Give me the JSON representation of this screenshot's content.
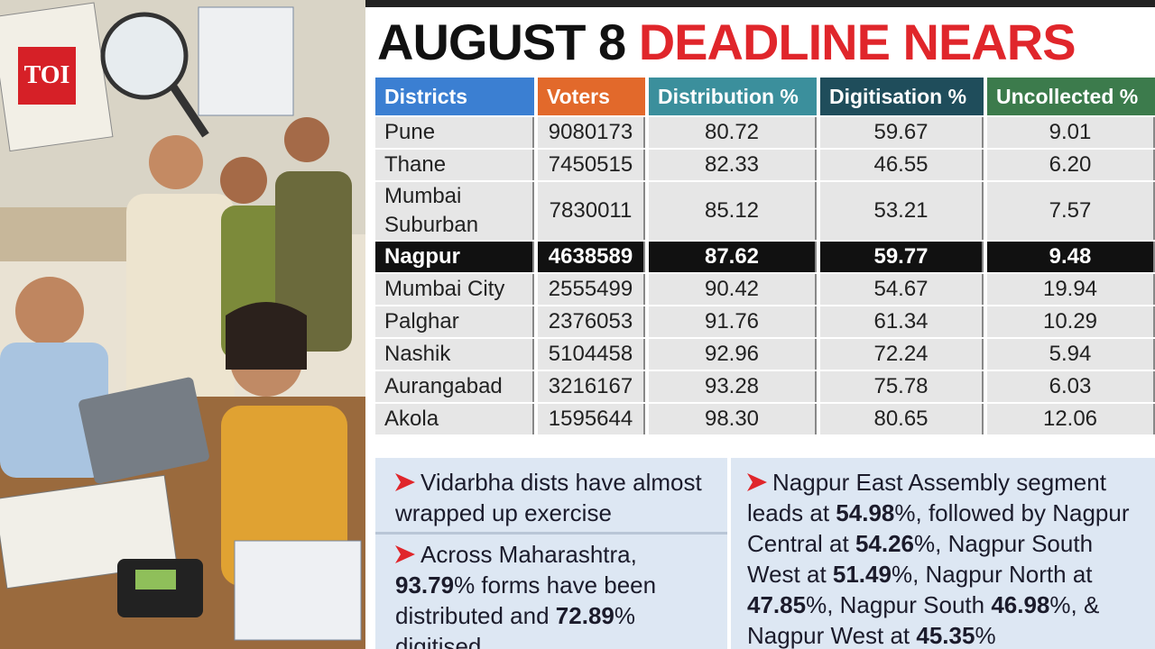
{
  "logo": "TOI",
  "title": {
    "part1": "AUGUST 8",
    "part2": "DEADLINE NEARS"
  },
  "table": {
    "header": [
      "Districts",
      "Voters",
      "Distribution %",
      "Digitisation %",
      "Uncollected %"
    ],
    "header_colors": [
      "#3b7fd2",
      "#e2692b",
      "#3b8f9c",
      "#1f4d5b",
      "#3c7b4c"
    ],
    "highlight_row": 3,
    "rows": [
      [
        "Pune",
        "9080173",
        "80.72",
        "59.67",
        "9.01"
      ],
      [
        "Thane",
        "7450515",
        "82.33",
        "46.55",
        "6.20"
      ],
      [
        "Mumbai Suburban",
        "7830011",
        "85.12",
        "53.21",
        "7.57"
      ],
      [
        "Nagpur",
        "4638589",
        "87.62",
        "59.77",
        "9.48"
      ],
      [
        "Mumbai City",
        "2555499",
        "90.42",
        "54.67",
        "19.94"
      ],
      [
        "Palghar",
        "2376053",
        "91.76",
        "61.34",
        "10.29"
      ],
      [
        "Nashik",
        "5104458",
        "92.96",
        "72.24",
        "5.94"
      ],
      [
        "Aurangabad",
        "3216167",
        "93.28",
        "75.78",
        "6.03"
      ],
      [
        "Akola",
        "1595644",
        "98.30",
        "80.65",
        "12.06"
      ]
    ]
  },
  "notes": [
    [
      {
        "text": "Vidarbha dists have almost wrapped up exercise"
      }
    ],
    [
      {
        "text": "Across Maharashtra, "
      },
      {
        "text": "93.79",
        "bold": true
      },
      {
        "text": "% forms have been distributed and "
      },
      {
        "text": "72.89",
        "bold": true
      },
      {
        "text": "% digitised"
      }
    ],
    [
      {
        "text": "Nagpur East Assembly segment leads at "
      },
      {
        "text": "54.98",
        "bold": true
      },
      {
        "text": "%, followed by Nagpur Central at "
      },
      {
        "text": "54.26",
        "bold": true
      },
      {
        "text": "%, Nagpur South West at "
      },
      {
        "text": "51.49",
        "bold": true
      },
      {
        "text": "%, Nagpur North at "
      },
      {
        "text": "47.85",
        "bold": true
      },
      {
        "text": "%, Nagpur South "
      },
      {
        "text": "46.98",
        "bold": true
      },
      {
        "text": "%, & Nagpur West at "
      },
      {
        "text": "45.35",
        "bold": true
      },
      {
        "text": "%"
      }
    ]
  ]
}
